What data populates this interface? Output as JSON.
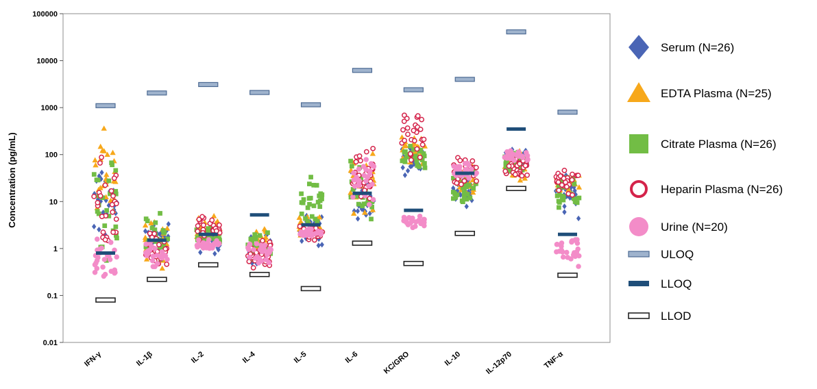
{
  "chart_data": {
    "type": "scatter",
    "title": "",
    "ylabel": "Concentration (pg/mL)",
    "xlabel": "",
    "yscale": "log",
    "ylim": [
      0.01,
      100000
    ],
    "y_ticks": [
      "100000",
      "10000",
      "1000",
      "100",
      "10",
      "1",
      "0.1",
      "0.01"
    ],
    "categories": [
      "IFN-γ",
      "IL-1β",
      "IL-2",
      "IL-4",
      "IL-5",
      "IL-6",
      "KC/GRO",
      "IL-10",
      "IL-12p70",
      "TNF-α"
    ],
    "grid": false,
    "legend_position": "right",
    "colors": {
      "serum": "#4a65b5",
      "edta": "#f7a81b",
      "citrate": "#72bd45",
      "heparin": "#d4234a",
      "urine": "#f38cc8",
      "uloq_fill": "#9fb3cd",
      "uloq_stroke": "#4c6a93",
      "lloq": "#1f4e79",
      "llod_stroke": "#222222"
    },
    "series": [
      {
        "name": "Serum (N=26)",
        "key": "serum",
        "marker": "diamond",
        "ranges": [
          [
            0.3,
            200
          ],
          [
            0.8,
            5
          ],
          [
            0.6,
            3
          ],
          [
            0.3,
            3
          ],
          [
            0.8,
            8
          ],
          [
            1.5,
            50
          ],
          [
            28,
            200
          ],
          [
            7,
            60
          ],
          [
            40,
            150
          ],
          [
            3,
            70
          ]
        ]
      },
      {
        "name": "EDTA Plasma (N=25)",
        "key": "edta",
        "marker": "triangle",
        "ranges": [
          [
            3,
            500
          ],
          [
            0.3,
            6
          ],
          [
            1,
            6
          ],
          [
            0.3,
            4
          ],
          [
            1.5,
            7
          ],
          [
            3,
            200
          ],
          [
            30,
            450
          ],
          [
            10,
            80
          ],
          [
            20,
            200
          ],
          [
            10,
            60
          ]
        ]
      },
      {
        "name": "Citrate Plasma (N=26)",
        "key": "citrate",
        "marker": "square",
        "ranges": [
          [
            0.3,
            200
          ],
          [
            0.3,
            9
          ],
          [
            0.8,
            4
          ],
          [
            0.3,
            3
          ],
          [
            1.5,
            50
          ],
          [
            2,
            100
          ],
          [
            30,
            200
          ],
          [
            6,
            60
          ],
          [
            30,
            150
          ],
          [
            5,
            50
          ]
        ]
      },
      {
        "name": "Heparin Plasma (N=26)",
        "key": "heparin",
        "marker": "ring",
        "ranges": [
          [
            0.3,
            350
          ],
          [
            0.3,
            3
          ],
          [
            1,
            7
          ],
          [
            0.3,
            2
          ],
          [
            1.2,
            4
          ],
          [
            5,
            350
          ],
          [
            40,
            3000
          ],
          [
            20,
            100
          ],
          [
            25,
            100
          ],
          [
            10,
            80
          ]
        ]
      },
      {
        "name": "Urine (N=20)",
        "key": "urine",
        "marker": "circle",
        "ranges": [
          [
            0.13,
            2
          ],
          [
            0.3,
            2
          ],
          [
            0.8,
            2
          ],
          [
            0.3,
            2
          ],
          [
            1.5,
            3
          ],
          [
            5,
            200
          ],
          [
            2.3,
            6
          ],
          [
            25,
            80
          ],
          [
            60,
            150
          ],
          [
            0.35,
            3
          ]
        ]
      }
    ],
    "reference_lines": [
      {
        "name": "ULOQ",
        "key": "uloq",
        "values": [
          1100,
          2050,
          3100,
          2100,
          1150,
          6200,
          2400,
          4000,
          41000,
          800
        ]
      },
      {
        "name": "LLOQ",
        "key": "lloq",
        "values": [
          0.8,
          1.5,
          2.0,
          5.2,
          3.2,
          15.0,
          6.5,
          40.0,
          350.0,
          2.0
        ]
      },
      {
        "name": "LLOD",
        "key": "llod",
        "values": [
          0.08,
          0.22,
          0.45,
          0.28,
          0.14,
          1.3,
          0.48,
          2.1,
          19.0,
          0.27
        ]
      }
    ]
  },
  "legend": {
    "items": [
      {
        "label": "Serum (N=26)",
        "marker": "diamond"
      },
      {
        "label": "EDTA Plasma (N=25)",
        "marker": "triangle"
      },
      {
        "label": "Citrate Plasma (N=26)",
        "marker": "square"
      },
      {
        "label": "Heparin Plasma (N=26)",
        "marker": "ring"
      },
      {
        "label": "Urine (N=20)",
        "marker": "circle"
      },
      {
        "label": "ULOQ",
        "marker": "uloq"
      },
      {
        "label": "LLOQ",
        "marker": "lloq"
      },
      {
        "label": "LLOD",
        "marker": "llod"
      }
    ]
  }
}
